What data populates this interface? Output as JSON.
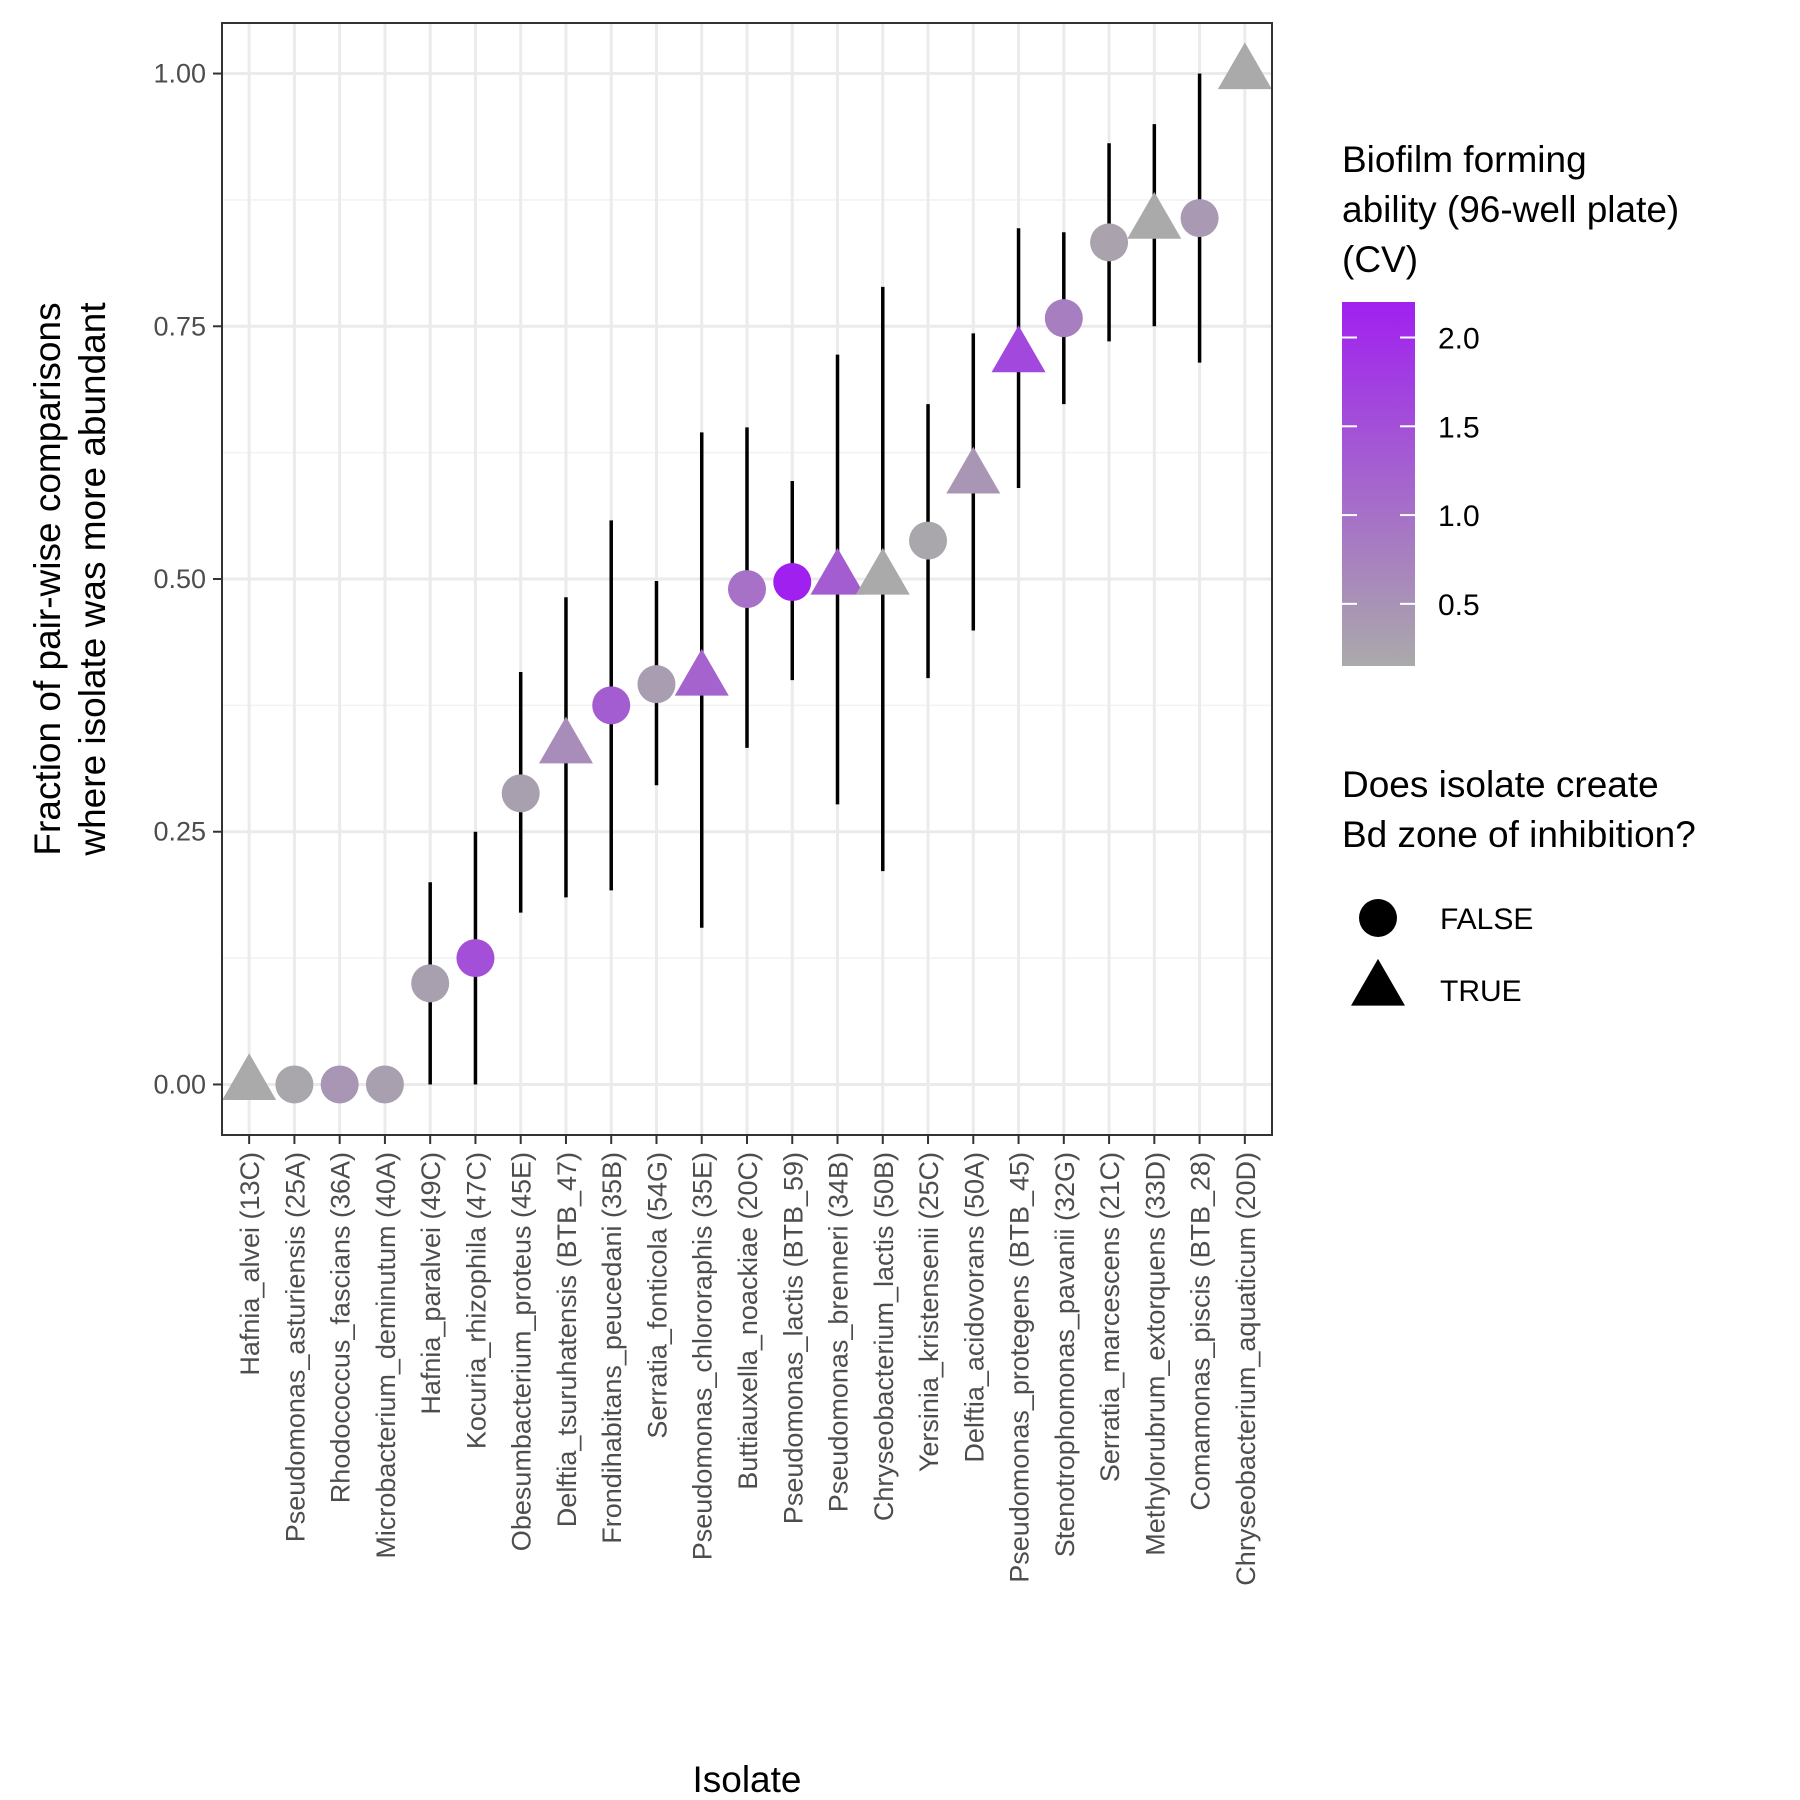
{
  "chart_data": {
    "type": "scatter",
    "title": "",
    "xlabel": "Isolate",
    "ylabel_lines": [
      "Fraction of pair-wise comparisons",
      "where isolate was more abundant"
    ],
    "ylim": [
      -0.05,
      1.05
    ],
    "yticks": [
      0.0,
      0.25,
      0.5,
      0.75,
      1.0
    ],
    "ytick_labels": [
      "0.00",
      "0.25",
      "0.50",
      "0.75",
      "1.00"
    ],
    "grid": true,
    "categories": [
      "Hafnia_alvei (13C)",
      "Pseudomonas_asturiensis (25A)",
      "Rhodococcus_fascians (36A)",
      "Microbacterium_deminutum (40A)",
      "Hafnia_paralvei (49C)",
      "Kocuria_rhizophila (47C)",
      "Obesumbacterium_proteus (45E)",
      "Delftia_tsuruhatensis (BTB_47)",
      "Frondihabitans_peucedani (35B)",
      "Serratia_fonticola (54G)",
      "Pseudomonas_chlororaphis (35E)",
      "Buttiauxella_noackiae (20C)",
      "Pseudomonas_lactis (BTB_59)",
      "Pseudomonas_brenneri (34B)",
      "Chryseobacterium_lactis (50B)",
      "Yersinia_kristensenii (25C)",
      "Delftia_acidovorans (50A)",
      "Pseudomonas_protegens (BTB_45)",
      "Stenotrophomonas_pavanii (32G)",
      "Serratia_marcescens (21C)",
      "Methylorubrum_extorquens (33D)",
      "Comamonas_piscis (BTB_28)",
      "Chryseobacterium_aquaticum (20D)"
    ],
    "points": [
      {
        "y": 0.0,
        "ymin": null,
        "ymax": null,
        "inhibition": true,
        "cv": 0.15
      },
      {
        "y": 0.0,
        "ymin": null,
        "ymax": null,
        "inhibition": false,
        "cv": 0.2
      },
      {
        "y": 0.0,
        "ymin": null,
        "ymax": null,
        "inhibition": false,
        "cv": 0.45
      },
      {
        "y": 0.0,
        "ymin": null,
        "ymax": null,
        "inhibition": false,
        "cv": 0.3
      },
      {
        "y": 0.1,
        "ymin": 0.0,
        "ymax": 0.2,
        "inhibition": false,
        "cv": 0.3
      },
      {
        "y": 0.125,
        "ymin": 0.0,
        "ymax": 0.25,
        "inhibition": false,
        "cv": 1.5
      },
      {
        "y": 0.288,
        "ymin": 0.17,
        "ymax": 0.408,
        "inhibition": false,
        "cv": 0.3
      },
      {
        "y": 0.333,
        "ymin": 0.185,
        "ymax": 0.482,
        "inhibition": true,
        "cv": 0.6
      },
      {
        "y": 0.375,
        "ymin": 0.192,
        "ymax": 0.558,
        "inhibition": false,
        "cv": 1.3
      },
      {
        "y": 0.396,
        "ymin": 0.296,
        "ymax": 0.498,
        "inhibition": false,
        "cv": 0.35
      },
      {
        "y": 0.4,
        "ymin": 0.155,
        "ymax": 0.645,
        "inhibition": true,
        "cv": 1.2
      },
      {
        "y": 0.49,
        "ymin": 0.333,
        "ymax": 0.65,
        "inhibition": false,
        "cv": 1.0
      },
      {
        "y": 0.497,
        "ymin": 0.4,
        "ymax": 0.597,
        "inhibition": false,
        "cv": 2.2
      },
      {
        "y": 0.5,
        "ymin": 0.277,
        "ymax": 0.722,
        "inhibition": true,
        "cv": 1.3
      },
      {
        "y": 0.5,
        "ymin": 0.211,
        "ymax": 0.789,
        "inhibition": true,
        "cv": 0.15
      },
      {
        "y": 0.538,
        "ymin": 0.402,
        "ymax": 0.673,
        "inhibition": false,
        "cv": 0.2
      },
      {
        "y": 0.6,
        "ymin": 0.449,
        "ymax": 0.743,
        "inhibition": true,
        "cv": 0.45
      },
      {
        "y": 0.72,
        "ymin": 0.59,
        "ymax": 0.847,
        "inhibition": true,
        "cv": 1.6
      },
      {
        "y": 0.758,
        "ymin": 0.673,
        "ymax": 0.843,
        "inhibition": false,
        "cv": 0.8
      },
      {
        "y": 0.833,
        "ymin": 0.735,
        "ymax": 0.931,
        "inhibition": false,
        "cv": 0.25
      },
      {
        "y": 0.852,
        "ymin": 0.75,
        "ymax": 0.95,
        "inhibition": true,
        "cv": 0.15
      },
      {
        "y": 0.857,
        "ymin": 0.714,
        "ymax": 1.0,
        "inhibition": false,
        "cv": 0.4
      },
      {
        "y": 1.0,
        "ymin": null,
        "ymax": null,
        "inhibition": true,
        "cv": 0.15
      }
    ],
    "color_scale": {
      "low_color": "#aaaaaa",
      "high_color": "#a020f0",
      "min": 0.15,
      "max": 2.2,
      "tick_values": [
        0.5,
        1.0,
        1.5,
        2.0
      ],
      "tick_labels": [
        "0.5",
        "1.0",
        "1.5",
        "2.0"
      ]
    },
    "legend_color_title": [
      "Biofilm forming",
      "ability (96-well plate)",
      "(CV)"
    ],
    "legend_shape_title": [
      "Does isolate create",
      "Bd zone of inhibition?"
    ],
    "legend_shape_items": [
      {
        "label": "FALSE",
        "shape": "circle"
      },
      {
        "label": "TRUE",
        "shape": "triangle"
      }
    ],
    "legend_placement": "right"
  }
}
